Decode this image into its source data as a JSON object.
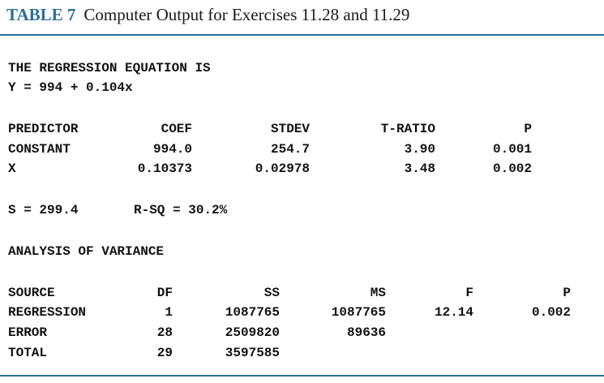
{
  "caption": {
    "label": "TABLE 7",
    "title": "Computer Output for Exercises 11.28 and 11.29"
  },
  "equation": {
    "heading": "THE REGRESSION EQUATION IS",
    "formula": "Y = 994 + 0.104x"
  },
  "predictor_table": {
    "headers": [
      "PREDICTOR",
      "COEF",
      "STDEV",
      "T-RATIO",
      "P"
    ],
    "rows": [
      [
        "CONSTANT",
        "994.0",
        "254.7",
        "3.90",
        "0.001"
      ],
      [
        "X",
        "0.10373",
        "0.02978",
        "3.48",
        "0.002"
      ]
    ]
  },
  "fit_stats": {
    "s": "S = 299.4",
    "rsq": "R-SQ = 30.2%"
  },
  "anova": {
    "heading": "ANALYSIS OF VARIANCE",
    "headers": [
      "SOURCE",
      "DF",
      "SS",
      "MS",
      "F",
      "P"
    ],
    "rows": [
      [
        "REGRESSION",
        "1",
        "1087765",
        "1087765",
        "12.14",
        "0.002"
      ],
      [
        "ERROR",
        "28",
        "2509820",
        "89636",
        "",
        ""
      ],
      [
        "TOTAL",
        "29",
        "3597585",
        "",
        "",
        ""
      ]
    ]
  },
  "colors": {
    "accent": "#2b6f9a",
    "text": "#111111"
  }
}
